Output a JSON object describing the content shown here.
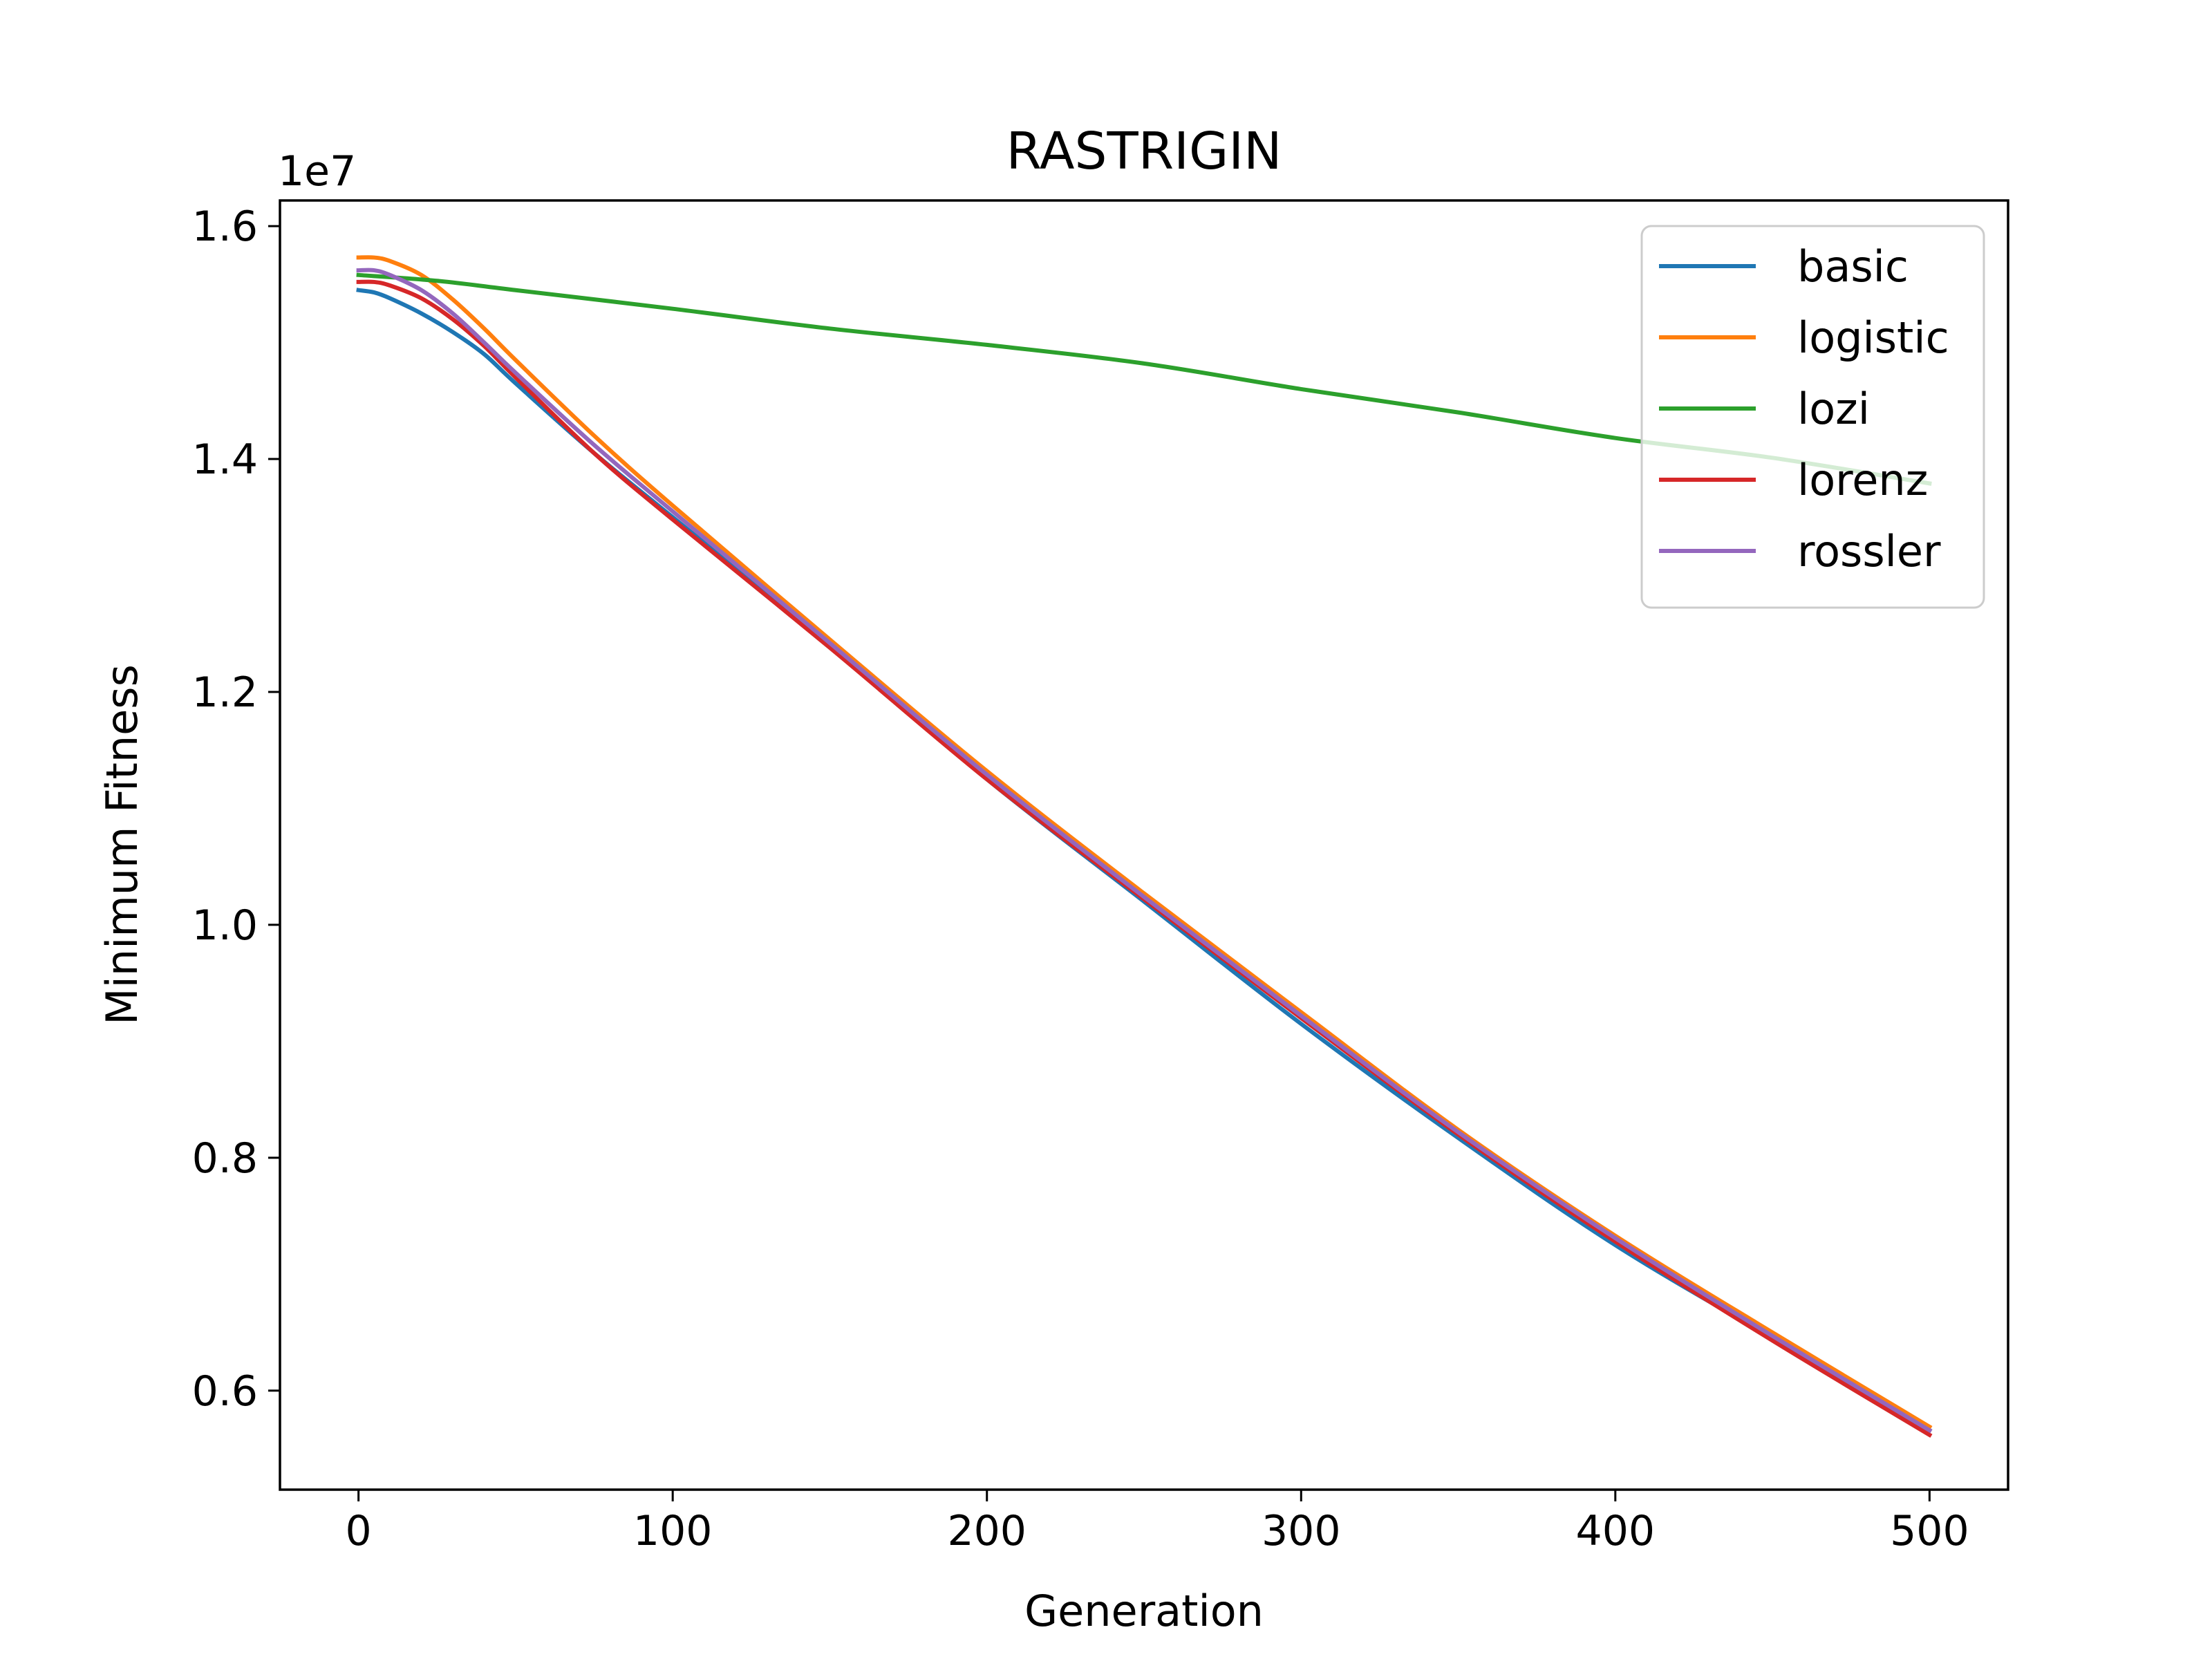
{
  "chart_data": {
    "type": "line",
    "title": "RASTRIGIN",
    "xlabel": "Generation",
    "ylabel": "Minimum Fitness",
    "y_offset_label": "1e7",
    "xlim": [
      -25,
      525
    ],
    "ylim": [
      0.515,
      1.622
    ],
    "x_ticks": [
      0,
      100,
      200,
      300,
      400,
      500
    ],
    "x_tick_labels": [
      "0",
      "100",
      "200",
      "300",
      "400",
      "500"
    ],
    "y_ticks": [
      0.6,
      0.8,
      1.0,
      1.2,
      1.4,
      1.6
    ],
    "y_tick_labels": [
      "0.6",
      "0.8",
      "1.0",
      "1.2",
      "1.4",
      "1.6"
    ],
    "grid": false,
    "legend_position": "top-right",
    "series": [
      {
        "name": "basic",
        "color": "#1f77b4",
        "x": [
          0,
          5,
          10,
          20,
          30,
          40,
          50,
          75,
          100,
          150,
          200,
          250,
          300,
          350,
          400,
          450,
          500
        ],
        "y": [
          1.545,
          1.543,
          1.538,
          1.525,
          1.509,
          1.49,
          1.465,
          1.405,
          1.35,
          1.24,
          1.125,
          1.02,
          0.915,
          0.817,
          0.725,
          0.645,
          0.566
        ]
      },
      {
        "name": "logistic",
        "color": "#ff7f0e",
        "x": [
          0,
          5,
          10,
          20,
          30,
          40,
          50,
          75,
          100,
          150,
          200,
          250,
          300,
          350,
          400,
          450,
          500
        ],
        "y": [
          1.573,
          1.573,
          1.57,
          1.558,
          1.537,
          1.512,
          1.485,
          1.42,
          1.36,
          1.245,
          1.132,
          1.027,
          0.925,
          0.824,
          0.733,
          0.65,
          0.569
        ]
      },
      {
        "name": "lozi",
        "color": "#2ca02c",
        "x": [
          0,
          25,
          50,
          100,
          150,
          200,
          250,
          300,
          350,
          400,
          450,
          500
        ],
        "y": [
          1.558,
          1.553,
          1.545,
          1.529,
          1.512,
          1.498,
          1.482,
          1.46,
          1.44,
          1.418,
          1.401,
          1.379
        ]
      },
      {
        "name": "lorenz",
        "color": "#d62728",
        "x": [
          0,
          5,
          10,
          20,
          30,
          40,
          50,
          75,
          100,
          150,
          200,
          250,
          300,
          350,
          400,
          450,
          500
        ],
        "y": [
          1.552,
          1.552,
          1.549,
          1.538,
          1.52,
          1.497,
          1.47,
          1.405,
          1.348,
          1.238,
          1.125,
          1.022,
          0.92,
          0.82,
          0.728,
          0.643,
          0.562
        ]
      },
      {
        "name": "rossler",
        "color": "#9467bd",
        "x": [
          0,
          5,
          10,
          20,
          30,
          40,
          50,
          75,
          100,
          150,
          200,
          250,
          300,
          350,
          400,
          450,
          500
        ],
        "y": [
          1.562,
          1.562,
          1.558,
          1.545,
          1.525,
          1.5,
          1.474,
          1.412,
          1.355,
          1.242,
          1.129,
          1.024,
          0.922,
          0.822,
          0.731,
          0.647,
          0.566
        ]
      }
    ]
  }
}
